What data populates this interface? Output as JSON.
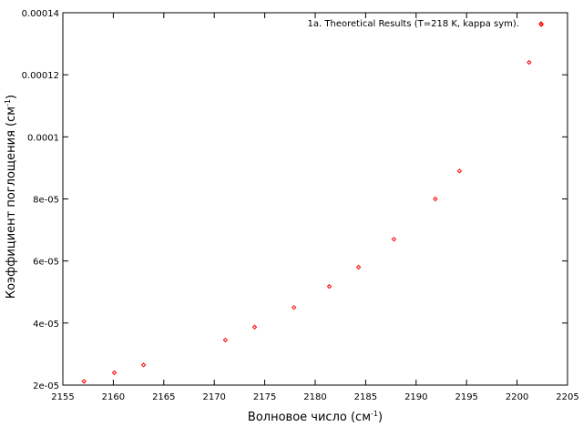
{
  "chart_data": {
    "type": "scatter",
    "xlabel": "Волновое число (см",
    "xlabel_sup": "-1",
    "xlabel_suffix": ")",
    "ylabel": "Коэффициент поглощения (см",
    "ylabel_sup": "-1",
    "ylabel_suffix": ")",
    "xlim": [
      2155,
      2205
    ],
    "ylim": [
      2e-05,
      0.00014
    ],
    "x_ticks": [
      2155,
      2160,
      2165,
      2170,
      2175,
      2180,
      2185,
      2190,
      2195,
      2200,
      2205
    ],
    "x_tick_labels": [
      "2155",
      "2160",
      "2165",
      "2170",
      "2175",
      "2180",
      "2185",
      "2190",
      "2195",
      "2200",
      "2205"
    ],
    "y_ticks": [
      2e-05,
      4e-05,
      6e-05,
      8e-05,
      0.0001,
      0.00012,
      0.00014
    ],
    "y_tick_labels": [
      "2e-05",
      "4e-05",
      "6e-05",
      "8e-05",
      "0.0001",
      "0.00012",
      "0.00014"
    ],
    "legend_position": "top-right",
    "grid": false,
    "series": [
      {
        "name": "1a. Theoretical Results (T=218 K, kappa sym).",
        "color": "#ff0000",
        "marker": "diamond",
        "x": [
          2157.1,
          2160.1,
          2163.0,
          2171.1,
          2174.0,
          2177.9,
          2181.4,
          2184.3,
          2187.8,
          2191.9,
          2194.3,
          2201.2,
          2202.4
        ],
        "y": [
          2.12e-05,
          2.4e-05,
          2.65e-05,
          3.45e-05,
          3.87e-05,
          4.5e-05,
          5.18e-05,
          5.8e-05,
          6.7e-05,
          8e-05,
          8.9e-05,
          0.000124,
          0.0001362
        ]
      }
    ]
  }
}
